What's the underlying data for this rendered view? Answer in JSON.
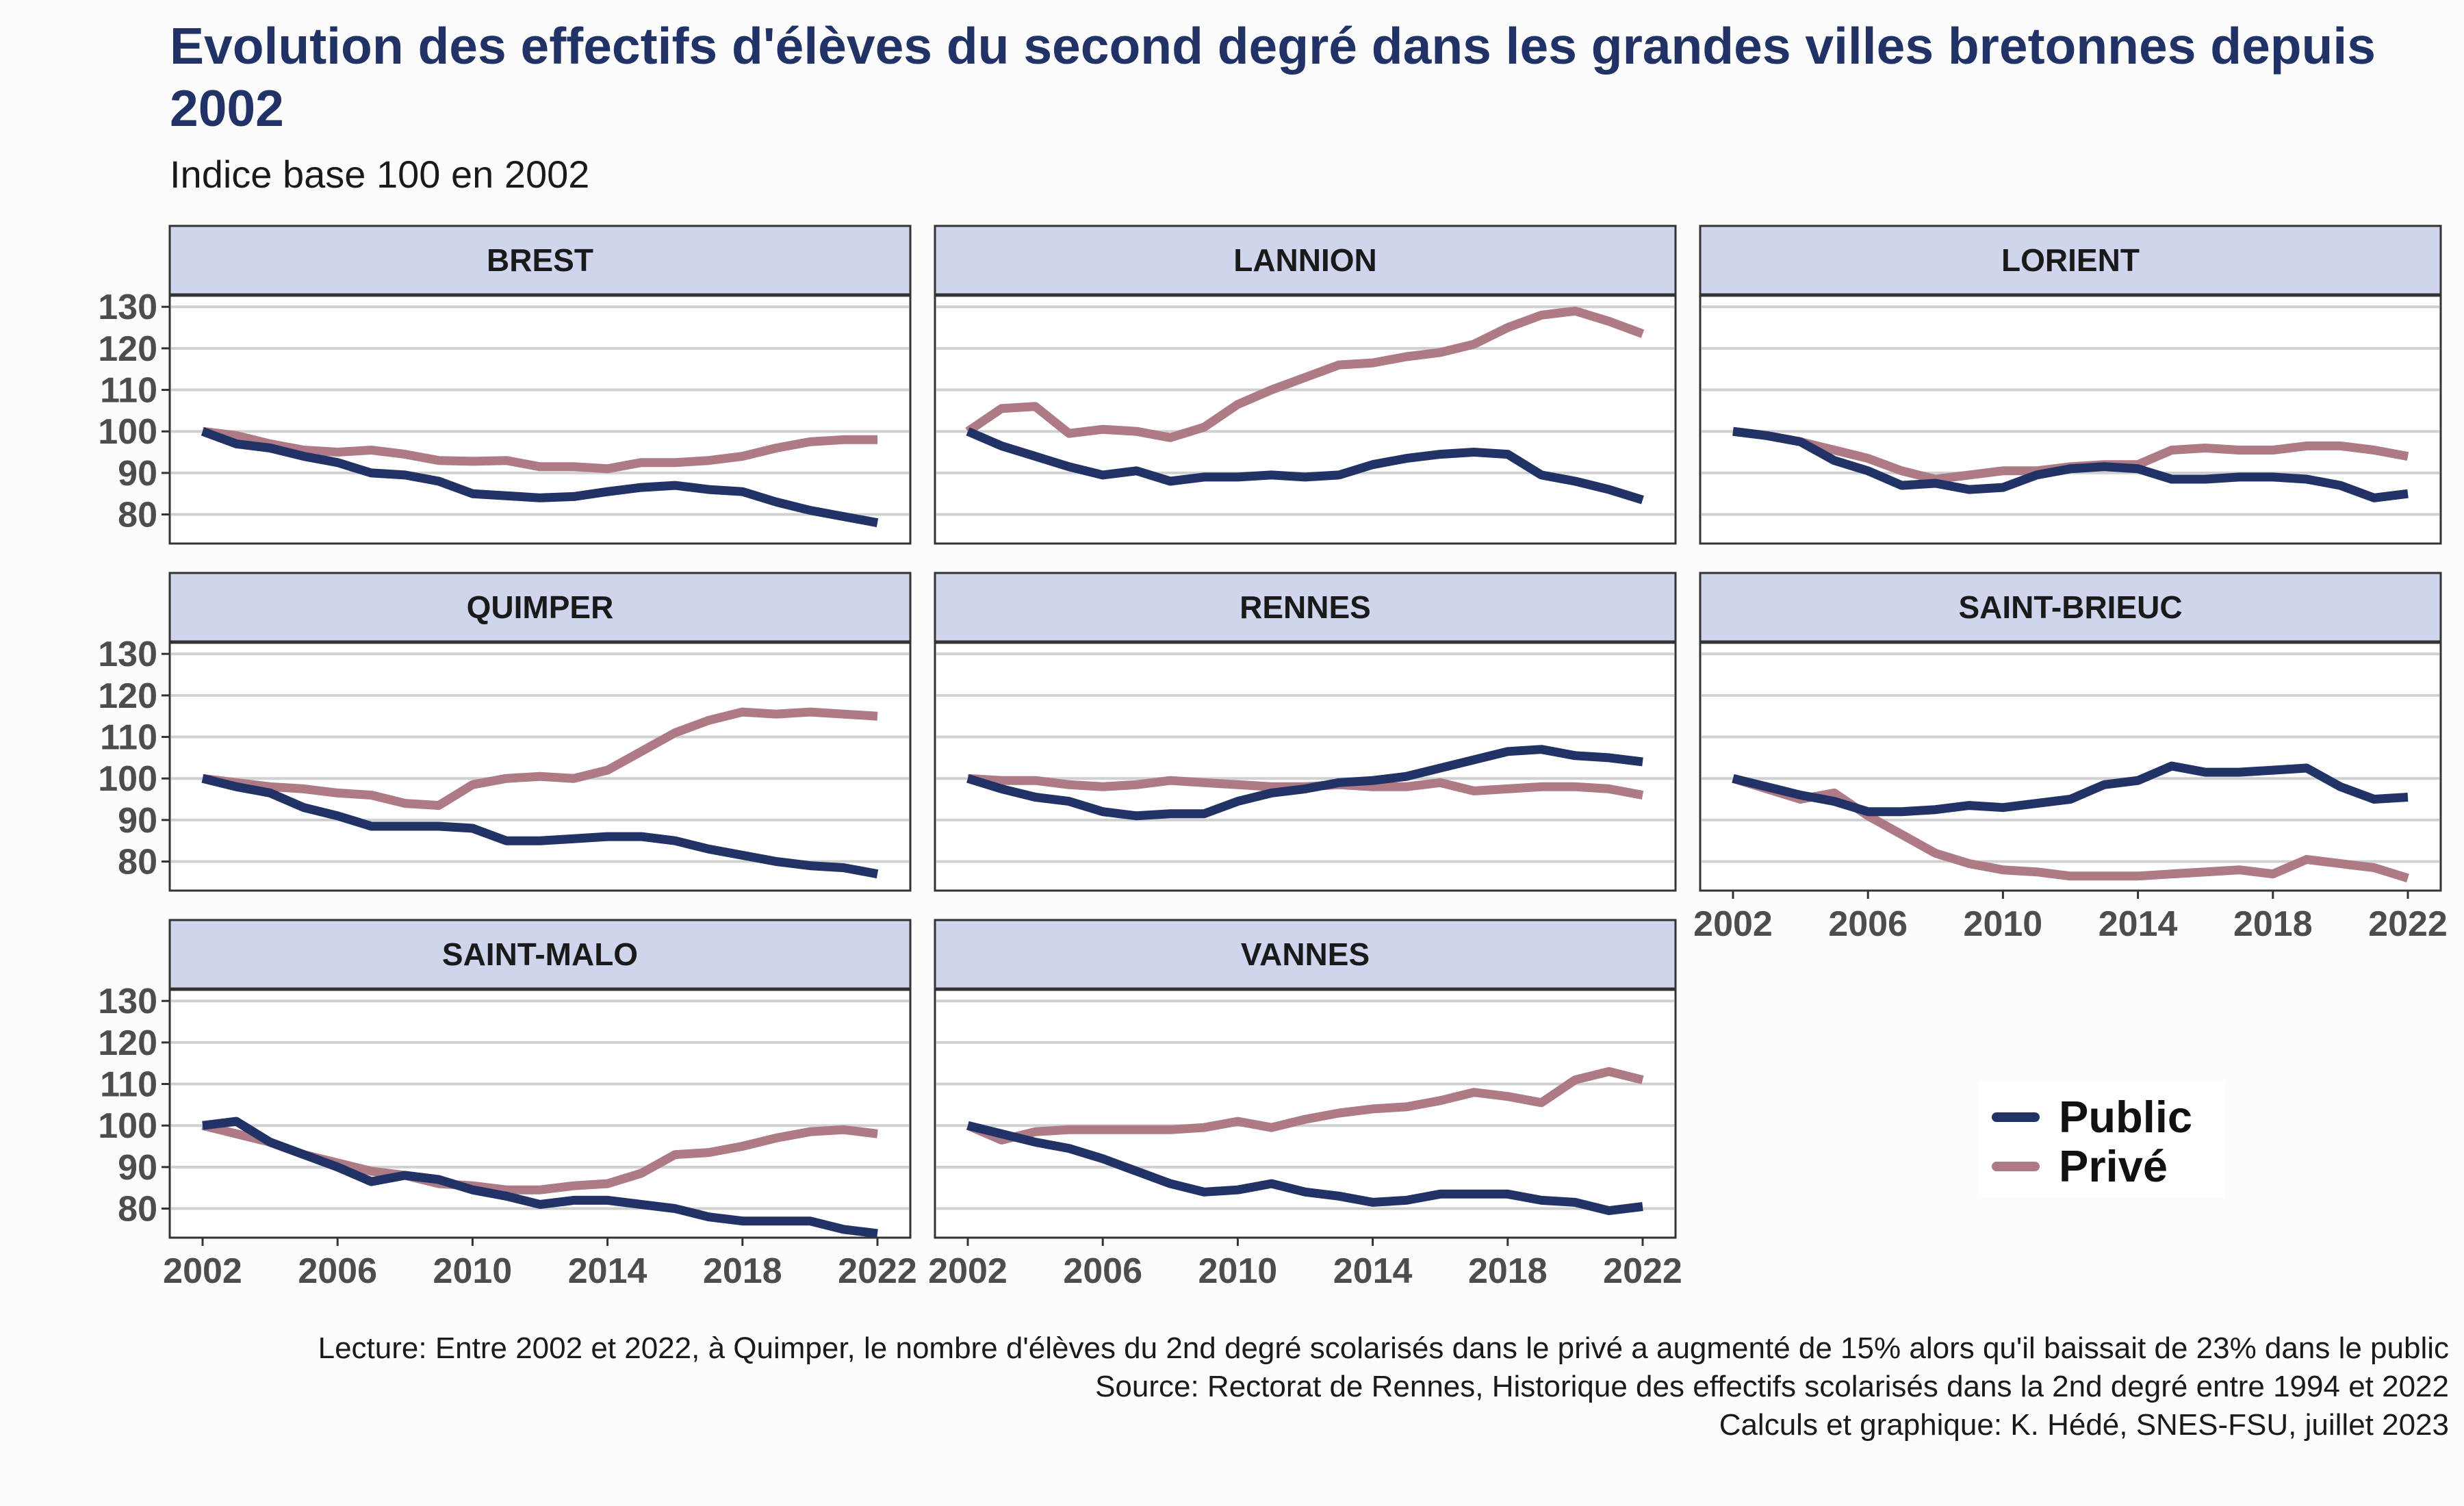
{
  "chart_data": {
    "type": "line",
    "title": "Evolution des effectifs d'élèves du second degré dans les grandes villes bretonnes depuis 2002",
    "subtitle": "Indice base 100 en 2002",
    "x": [
      2002,
      2003,
      2004,
      2005,
      2006,
      2007,
      2008,
      2009,
      2010,
      2011,
      2012,
      2013,
      2014,
      2015,
      2016,
      2017,
      2018,
      2019,
      2020,
      2021,
      2022
    ],
    "x_ticks": [
      2002,
      2006,
      2010,
      2014,
      2018,
      2022
    ],
    "y_ticks": [
      80,
      90,
      100,
      110,
      120,
      130
    ],
    "ylim": [
      73,
      133
    ],
    "grid": true,
    "legend_position": "bottom-right",
    "colors": {
      "public": "#213366",
      "prive": "#ad7a86",
      "strip_fill": "#ced5ed",
      "panel_border": "#333333",
      "grid": "#d0d0d0"
    },
    "legend": [
      {
        "key": "public",
        "label": "Public"
      },
      {
        "key": "prive",
        "label": "Privé"
      }
    ],
    "panels": [
      {
        "name": "BREST",
        "public": [
          100,
          97,
          96,
          94,
          92.5,
          90,
          89.5,
          88,
          85,
          84.5,
          84,
          84.3,
          85.5,
          86.5,
          87,
          86,
          85.5,
          83,
          81,
          79.5,
          78
        ],
        "prive": [
          100,
          99,
          97,
          95.5,
          95,
          95.5,
          94.5,
          93,
          92.8,
          93,
          91.5,
          91.5,
          91,
          92.5,
          92.5,
          93,
          94,
          96,
          97.5,
          98,
          98
        ]
      },
      {
        "name": "LANNION",
        "public": [
          100,
          96.5,
          94,
          91.5,
          89.5,
          90.5,
          88,
          89,
          89,
          89.5,
          89,
          89.5,
          92,
          93.5,
          94.5,
          95,
          94.5,
          89.5,
          88,
          86,
          83.5
        ],
        "prive": [
          100,
          105.5,
          106,
          99.5,
          100.5,
          100,
          98.5,
          101,
          106.5,
          110,
          113,
          116,
          116.5,
          118,
          119,
          121,
          125,
          128,
          129,
          126.5,
          123.5
        ]
      },
      {
        "name": "LORIENT",
        "public": [
          100,
          99,
          97.5,
          93,
          90.5,
          87,
          87.5,
          86,
          86.5,
          89.5,
          91,
          91.5,
          91,
          88.5,
          88.5,
          89,
          89,
          88.5,
          87,
          84,
          85
        ],
        "prive": [
          100,
          99,
          97.5,
          95.5,
          93.5,
          90.5,
          88.5,
          89.5,
          90.5,
          90.5,
          91.5,
          92,
          92,
          95.5,
          96,
          95.5,
          95.5,
          96.5,
          96.5,
          95.5,
          94
        ]
      },
      {
        "name": "QUIMPER",
        "public": [
          100,
          98,
          96.5,
          93,
          91,
          88.5,
          88.5,
          88.5,
          88,
          85,
          85,
          85.5,
          86,
          86,
          85,
          83,
          81.5,
          80,
          79,
          78.5,
          77
        ],
        "prive": [
          100,
          99,
          98,
          97.5,
          96.5,
          96,
          94,
          93.5,
          98.5,
          100,
          100.5,
          100,
          102,
          106.5,
          111,
          114,
          116,
          115.5,
          116,
          115.5,
          115
        ]
      },
      {
        "name": "RENNES",
        "public": [
          100,
          97.5,
          95.5,
          94.5,
          92,
          91,
          91.5,
          91.5,
          94.5,
          96.5,
          97.5,
          99,
          99.5,
          100.5,
          102.5,
          104.5,
          106.5,
          107,
          105.5,
          105,
          104
        ],
        "prive": [
          100,
          99.5,
          99.5,
          98.5,
          98,
          98.5,
          99.5,
          99,
          98.5,
          98,
          98,
          98.5,
          98,
          98,
          99,
          97,
          97.5,
          98,
          98,
          97.5,
          96
        ]
      },
      {
        "name": "SAINT-BRIEUC",
        "public": [
          100,
          98,
          96,
          94.5,
          92,
          92,
          92.5,
          93.5,
          93,
          94,
          95,
          98.5,
          99.5,
          103,
          101.5,
          101.5,
          102,
          102.5,
          98,
          95,
          95.5
        ],
        "prive": [
          100,
          97.5,
          95,
          96.5,
          91,
          86.5,
          82,
          79.5,
          78,
          77.5,
          76.5,
          76.5,
          76.5,
          77,
          77.5,
          78,
          77,
          80.5,
          79.5,
          78.5,
          76
        ]
      },
      {
        "name": "SAINT-MALO",
        "public": [
          100,
          101,
          96,
          93,
          90,
          86.5,
          88,
          87,
          84.5,
          83,
          81,
          82,
          82,
          81,
          80,
          78,
          77,
          77,
          77,
          75,
          74
        ],
        "prive": [
          100,
          98,
          96,
          93,
          91,
          89,
          88,
          86,
          85.5,
          84.5,
          84.5,
          85.5,
          86,
          88.5,
          93,
          93.5,
          95,
          97,
          98.5,
          99,
          98
        ]
      },
      {
        "name": "VANNES",
        "public": [
          100,
          98,
          96,
          94.5,
          92,
          89,
          86,
          84,
          84.5,
          86,
          84,
          83,
          81.5,
          82,
          83.5,
          83.5,
          83.5,
          82,
          81.5,
          79.5,
          80.5
        ],
        "prive": [
          100,
          96.5,
          98.5,
          99,
          99,
          99,
          99,
          99.5,
          101,
          99.5,
          101.5,
          103,
          104,
          104.5,
          106,
          108,
          107,
          105.5,
          111,
          113,
          111
        ]
      }
    ]
  },
  "caption": {
    "lecture": "Lecture: Entre 2002 et 2022, à Quimper, le nombre d'élèves du 2nd degré scolarisés dans le privé a augmenté de 15% alors qu'il baissait de 23% dans le public",
    "source": "Source: Rectorat de Rennes, Historique des effectifs scolarisés dans la 2nd degré entre 1994 et 2022",
    "credits": "Calculs et graphique: K. Hédé, SNES-FSU, juillet 2023"
  }
}
